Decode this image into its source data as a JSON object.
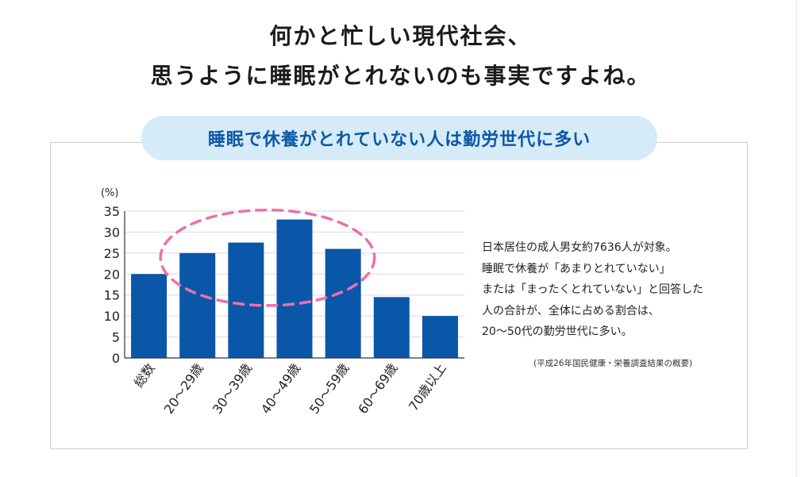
{
  "headline": {
    "line1": "何かと忙しい現代社会、",
    "line2": "思うように睡眠がとれないのも事実ですよね。"
  },
  "chart_data": {
    "type": "bar",
    "title": "睡眠で休養がとれていない人は勤労世代に多い",
    "ylabel": "(%)",
    "xlabel": "",
    "ylim": [
      0,
      35
    ],
    "yticks": [
      0,
      5,
      10,
      15,
      20,
      25,
      30,
      35
    ],
    "grid": true,
    "categories": [
      "総数",
      "20～29歳",
      "30～39歳",
      "40～49歳",
      "50～59歳",
      "60～69歳",
      "70歳以上"
    ],
    "values": [
      20,
      25,
      27.5,
      33,
      26,
      14.5,
      10
    ],
    "colors": {
      "bar": "#0a56a8",
      "highlight": "#ef6fab",
      "grid": "#d9d9d9",
      "axis": "#333333"
    },
    "annotation": "dashed ellipse around 20～29歳 through 50～59歳"
  },
  "note": {
    "lines": [
      "日本居住の成人男女約7636人が対象。",
      "睡眠で休養が「あまりとれていない」",
      "または「まったくとれていない」と回答した",
      "人の合計が、全体に占める割合は、",
      "20～50代の勤労世代に多い。"
    ],
    "source": "(平成26年国民健康・栄養調査結果の概要)"
  }
}
